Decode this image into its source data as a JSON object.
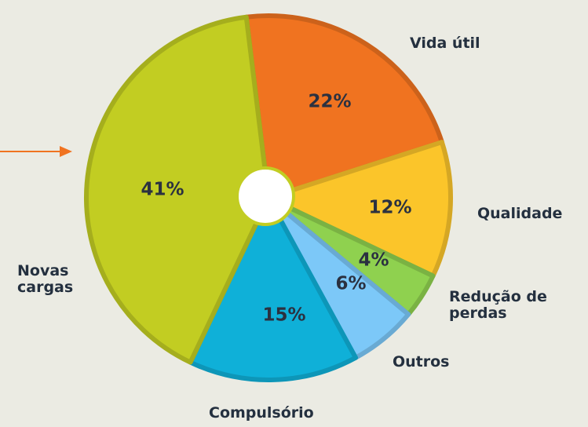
{
  "chart_data": {
    "type": "donut",
    "categories": [
      "Vida útil",
      "Qualidade",
      "Redução de perdas",
      "Outros",
      "Compulsório",
      "Novas cargas"
    ],
    "values": [
      22,
      12,
      4,
      6,
      15,
      41
    ],
    "value_labels": [
      "22%",
      "12%",
      "4%",
      "6%",
      "15%",
      "41%"
    ],
    "colors": [
      "#f07320",
      "#fbc52a",
      "#8fd14f",
      "#7cc8f8",
      "#0fb0d8",
      "#c2cd22"
    ]
  }
}
